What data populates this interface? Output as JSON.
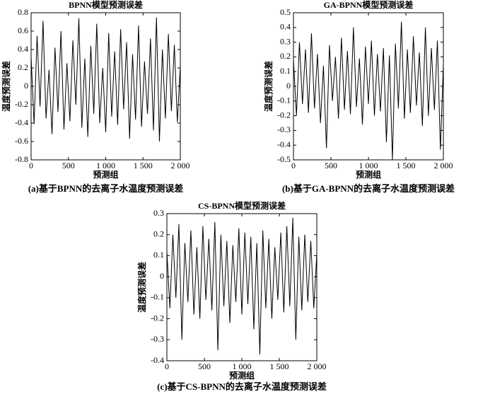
{
  "chart_data": [
    {
      "type": "line",
      "title": "BPNN模型预测误差",
      "x_label": "预测组",
      "y_label": "温度预测误差",
      "caption": "(a)基于BPNN的去离子水温度预测误差",
      "x": [
        0,
        40,
        80,
        120,
        160,
        200,
        240,
        280,
        320,
        360,
        400,
        440,
        480,
        520,
        560,
        600,
        640,
        680,
        720,
        760,
        800,
        840,
        880,
        920,
        960,
        1000,
        1040,
        1080,
        1120,
        1160,
        1200,
        1240,
        1280,
        1320,
        1360,
        1400,
        1440,
        1480,
        1520,
        1560,
        1600,
        1640,
        1680,
        1720,
        1760,
        1800,
        1840,
        1880,
        1920,
        1960,
        2000
      ],
      "series": [
        {
          "color": "#000000",
          "values": [
            0.32,
            -0.41,
            0.55,
            -0.22,
            0.71,
            -0.35,
            0.18,
            -0.52,
            0.42,
            -0.28,
            0.6,
            -0.47,
            0.25,
            -0.38,
            0.5,
            -0.2,
            0.74,
            -0.45,
            0.3,
            -0.55,
            0.44,
            -0.3,
            0.68,
            -0.4,
            0.2,
            -0.5,
            0.58,
            -0.33,
            0.38,
            -0.42,
            0.62,
            -0.25,
            0.48,
            -0.57,
            0.35,
            -0.36,
            0.66,
            -0.44,
            0.27,
            -0.3,
            0.52,
            -0.48,
            0.75,
            -0.6,
            0.4,
            -0.35,
            0.57,
            -0.27,
            0.45,
            -0.39,
            0.22
          ]
        }
      ],
      "xlim": [
        0,
        2000
      ],
      "xticks": [
        0,
        500,
        {
          "value": 1000,
          "label": "1 000"
        },
        {
          "value": 1500,
          "label": "1 500"
        },
        {
          "value": 2000,
          "label": "2 000"
        }
      ],
      "ylim": [
        -0.8,
        0.8
      ],
      "yticks": [
        -0.8,
        -0.6,
        -0.4,
        -0.2,
        0,
        0.2,
        0.4,
        0.6,
        0.8
      ]
    },
    {
      "type": "line",
      "title": "GA-BPNN模型预测误差",
      "x_label": "预测组",
      "y_label": "温度预测误差",
      "caption": "(b)基于GA-BPNN的去离子水温度预测误差",
      "x": [
        0,
        40,
        80,
        120,
        160,
        200,
        240,
        280,
        320,
        360,
        400,
        440,
        480,
        520,
        560,
        600,
        640,
        680,
        720,
        760,
        800,
        840,
        880,
        920,
        960,
        1000,
        1040,
        1080,
        1120,
        1160,
        1200,
        1240,
        1280,
        1320,
        1360,
        1400,
        1440,
        1480,
        1520,
        1560,
        1600,
        1640,
        1680,
        1720,
        1760,
        1800,
        1840,
        1880,
        1920,
        1960,
        2000
      ],
      "series": [
        {
          "color": "#000000",
          "values": [
            0.18,
            -0.2,
            0.3,
            -0.12,
            0.25,
            -0.18,
            0.36,
            -0.15,
            0.22,
            -0.25,
            0.14,
            -0.42,
            0.28,
            -0.1,
            0.2,
            -0.22,
            0.33,
            -0.16,
            0.24,
            -0.19,
            0.4,
            -0.14,
            0.19,
            -0.26,
            0.27,
            -0.12,
            0.31,
            -0.2,
            0.22,
            -0.17,
            0.26,
            -0.38,
            0.21,
            -0.5,
            0.29,
            -0.15,
            0.44,
            -0.22,
            0.25,
            -0.18,
            0.34,
            -0.13,
            0.23,
            -0.27,
            0.4,
            -0.2,
            0.26,
            -0.16,
            0.31,
            -0.43,
            0.15
          ]
        }
      ],
      "xlim": [
        0,
        2000
      ],
      "xticks": [
        0,
        500,
        {
          "value": 1000,
          "label": "1 000"
        },
        {
          "value": 1500,
          "label": "1 500"
        },
        {
          "value": 2000,
          "label": "2 000"
        }
      ],
      "ylim": [
        -0.5,
        0.5
      ],
      "yticks": [
        -0.5,
        -0.4,
        -0.3,
        -0.2,
        -0.1,
        0,
        0.1,
        0.2,
        0.3,
        0.4,
        0.5
      ]
    },
    {
      "type": "line",
      "title": "CS-BPNN模型预测误差",
      "x_label": "预测组",
      "y_label": "温度预测误差",
      "caption": "(c)基于CS-BPNN的去离子水温度预测误差",
      "x": [
        0,
        40,
        80,
        120,
        160,
        200,
        240,
        280,
        320,
        360,
        400,
        440,
        480,
        520,
        560,
        600,
        640,
        680,
        720,
        760,
        800,
        840,
        880,
        920,
        960,
        1000,
        1040,
        1080,
        1120,
        1160,
        1200,
        1240,
        1280,
        1320,
        1360,
        1400,
        1440,
        1480,
        1520,
        1560,
        1600,
        1640,
        1680,
        1720,
        1760,
        1800,
        1840,
        1880,
        1920,
        1960,
        2000
      ],
      "series": [
        {
          "color": "#000000",
          "values": [
            0.12,
            -0.15,
            0.2,
            -0.1,
            0.25,
            -0.3,
            0.16,
            -0.12,
            0.22,
            -0.18,
            0.14,
            -0.2,
            0.24,
            -0.11,
            0.18,
            -0.16,
            0.26,
            -0.35,
            0.2,
            -0.14,
            0.17,
            -0.22,
            0.15,
            -0.12,
            0.23,
            -0.18,
            0.21,
            -0.13,
            0.19,
            -0.25,
            0.16,
            -0.37,
            0.22,
            -0.15,
            0.18,
            -0.2,
            0.14,
            -0.11,
            0.21,
            -0.17,
            0.24,
            -0.14,
            0.28,
            -0.3,
            0.19,
            -0.16,
            0.2,
            -0.12,
            0.17,
            -0.15,
            0.11
          ]
        }
      ],
      "xlim": [
        0,
        2000
      ],
      "xticks": [
        0,
        500,
        {
          "value": 1000,
          "label": "1 000"
        },
        {
          "value": 1500,
          "label": "1 500"
        },
        {
          "value": 2000,
          "label": "2 000"
        }
      ],
      "ylim": [
        -0.4,
        0.3
      ],
      "yticks": [
        -0.4,
        -0.3,
        -0.2,
        -0.1,
        0,
        0.1,
        0.2,
        0.3
      ]
    }
  ]
}
